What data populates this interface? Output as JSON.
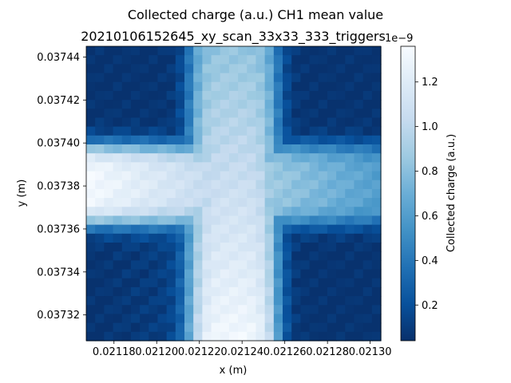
{
  "chart_data": {
    "type": "heatmap",
    "title": "Collected charge (a.u.) CH1 mean value",
    "subtitle": "20210106152645_xy_scan_33x33_333_triggers",
    "xlabel": "x (m)",
    "ylabel": "y (m)",
    "xlim": [
      0.021167,
      0.021305
    ],
    "ylim": [
      0.037308,
      0.037445
    ],
    "grid": false,
    "colormap": "Blues_r",
    "colorbar": {
      "label": "Collected charge (a.u.)",
      "offset_text": "1e−9",
      "range": [
        0.04,
        1.36
      ],
      "ticks": [
        0.2,
        0.4,
        0.6,
        0.8,
        1.0,
        1.2
      ],
      "tick_labels": [
        "0.2",
        "0.4",
        "0.6",
        "0.8",
        "1.0",
        "1.2"
      ]
    },
    "xticks": [
      0.02118,
      0.0212,
      0.02122,
      0.02124,
      0.02126,
      0.02128,
      0.0213
    ],
    "xtick_labels": [
      "0.02118",
      "0.02120",
      "0.02122",
      "0.02124",
      "0.02126",
      "0.02128",
      "0.02130"
    ],
    "yticks": [
      0.03732,
      0.03734,
      0.03736,
      0.03738,
      0.0374,
      0.03742,
      0.03744
    ],
    "ytick_labels": [
      "0.03732",
      "0.03734",
      "0.03736",
      "0.03738",
      "0.03740",
      "0.03742",
      "0.03744"
    ],
    "grid_size": [
      33,
      33
    ],
    "description": "Bright cross-shaped region (~1.3e-9) where the vertical strip x≈0.021222–0.021253 and horizontal strip y≈0.037365–0.037400 meet; corners low (~0.05–0.2e-9); left arm of horizontal strip brighter than right arm; vertical strip brighter at bottom than top."
  },
  "colors": {
    "low": "#08306b",
    "high": "#f7fbff"
  }
}
